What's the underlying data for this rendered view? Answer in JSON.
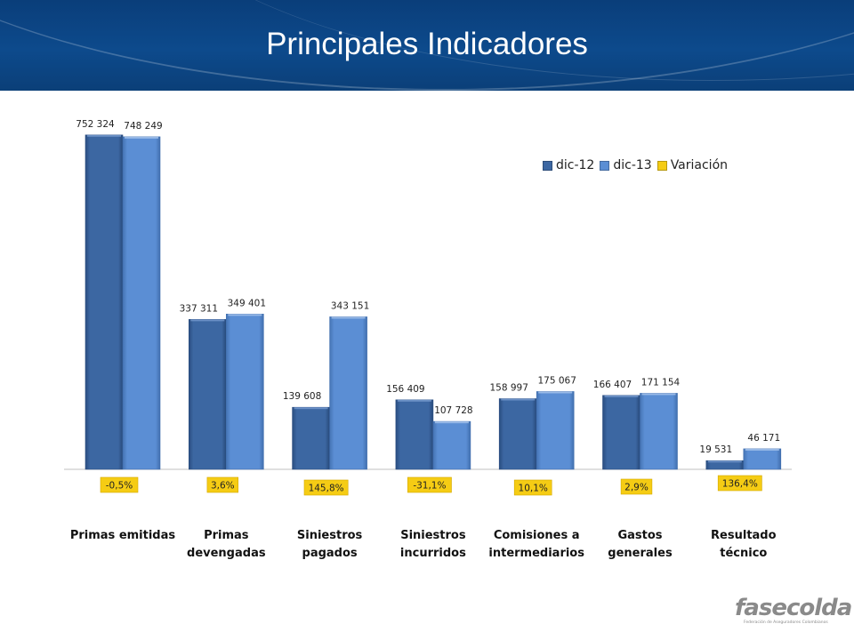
{
  "header": {
    "title": "Principales Indicadores"
  },
  "logo": {
    "name": "fasecolda",
    "tagline": "Federación de Aseguradores Colombianos"
  },
  "colors": {
    "dic12": "#3c67a2",
    "dic13": "#5b8ed4",
    "variacion": "#f5cc14",
    "header": "#0d4a8c"
  },
  "chart_data": {
    "type": "bar",
    "title": "",
    "categories": [
      "Primas emitidas",
      "Primas devengadas",
      "Siniestros pagados",
      "Siniestros incurridos",
      "Comisiones a intermediarios",
      "Gastos generales",
      "Resultado técnico"
    ],
    "category_lines": [
      [
        "Primas emitidas"
      ],
      [
        "Primas",
        "devengadas"
      ],
      [
        "Siniestros",
        "pagados"
      ],
      [
        "Siniestros",
        "incurridos"
      ],
      [
        "Comisiones a",
        "intermediarios"
      ],
      [
        "Gastos",
        "generales"
      ],
      [
        "Resultado",
        "técnico"
      ]
    ],
    "series": [
      {
        "name": "dic-12",
        "values": [
          752324,
          337311,
          139608,
          156409,
          158997,
          166407,
          19531
        ],
        "labels": [
          "752 324",
          "337 311",
          "139 608",
          "156 409",
          "158 997",
          "166 407",
          "19 531"
        ]
      },
      {
        "name": "dic-13",
        "values": [
          748249,
          349401,
          343151,
          107728,
          175067,
          171154,
          46171
        ],
        "labels": [
          "748 249",
          "349 401",
          "343 151",
          "107 728",
          "175 067",
          "171 154",
          "46 171"
        ]
      }
    ],
    "variacion": {
      "name": "Variación",
      "labels": [
        "-0,5%",
        "3,6%",
        "145,8%",
        "-31,1%",
        "10,1%",
        "2,9%",
        "136,4%"
      ]
    },
    "ylim": [
      0,
      800000
    ],
    "legend": "top-right",
    "grid": false
  }
}
